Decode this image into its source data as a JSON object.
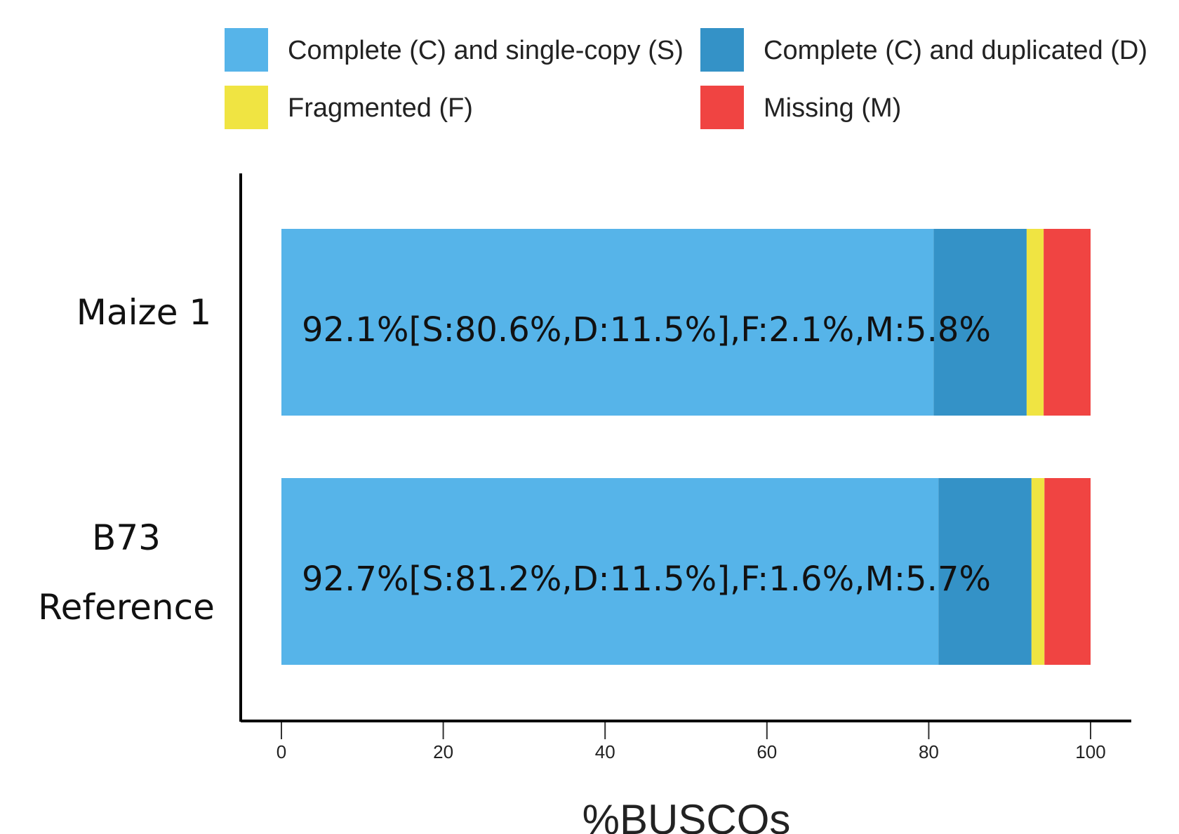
{
  "chart_data": {
    "type": "bar",
    "orientation": "horizontal",
    "stacked": true,
    "categories": [
      {
        "lines": [
          "Maize 1"
        ]
      },
      {
        "lines": [
          "B73",
          "Reference"
        ]
      }
    ],
    "series": [
      {
        "name": "Complete (C) and single-copy (S)",
        "color": "#56b4e9",
        "values": [
          80.6,
          81.2
        ]
      },
      {
        "name": "Complete (C) and duplicated (D)",
        "color": "#3492c7",
        "values": [
          11.5,
          11.5
        ]
      },
      {
        "name": "Fragmented (F)",
        "color": "#f0e442",
        "values": [
          2.1,
          1.6
        ]
      },
      {
        "name": "Missing (M)",
        "color": "#f04442",
        "values": [
          5.8,
          5.7
        ]
      }
    ],
    "bar_labels": [
      "92.1%[S:80.6%,D:11.5%],F:2.1%,M:5.8%",
      "92.7%[S:81.2%,D:11.5%],F:1.6%,M:5.7%"
    ],
    "x_ticks": [
      "0",
      "20",
      "40",
      "60",
      "80",
      "100"
    ],
    "xlim": [
      0,
      100
    ],
    "xlabel": "%BUSCOs",
    "legend_position": "top"
  }
}
